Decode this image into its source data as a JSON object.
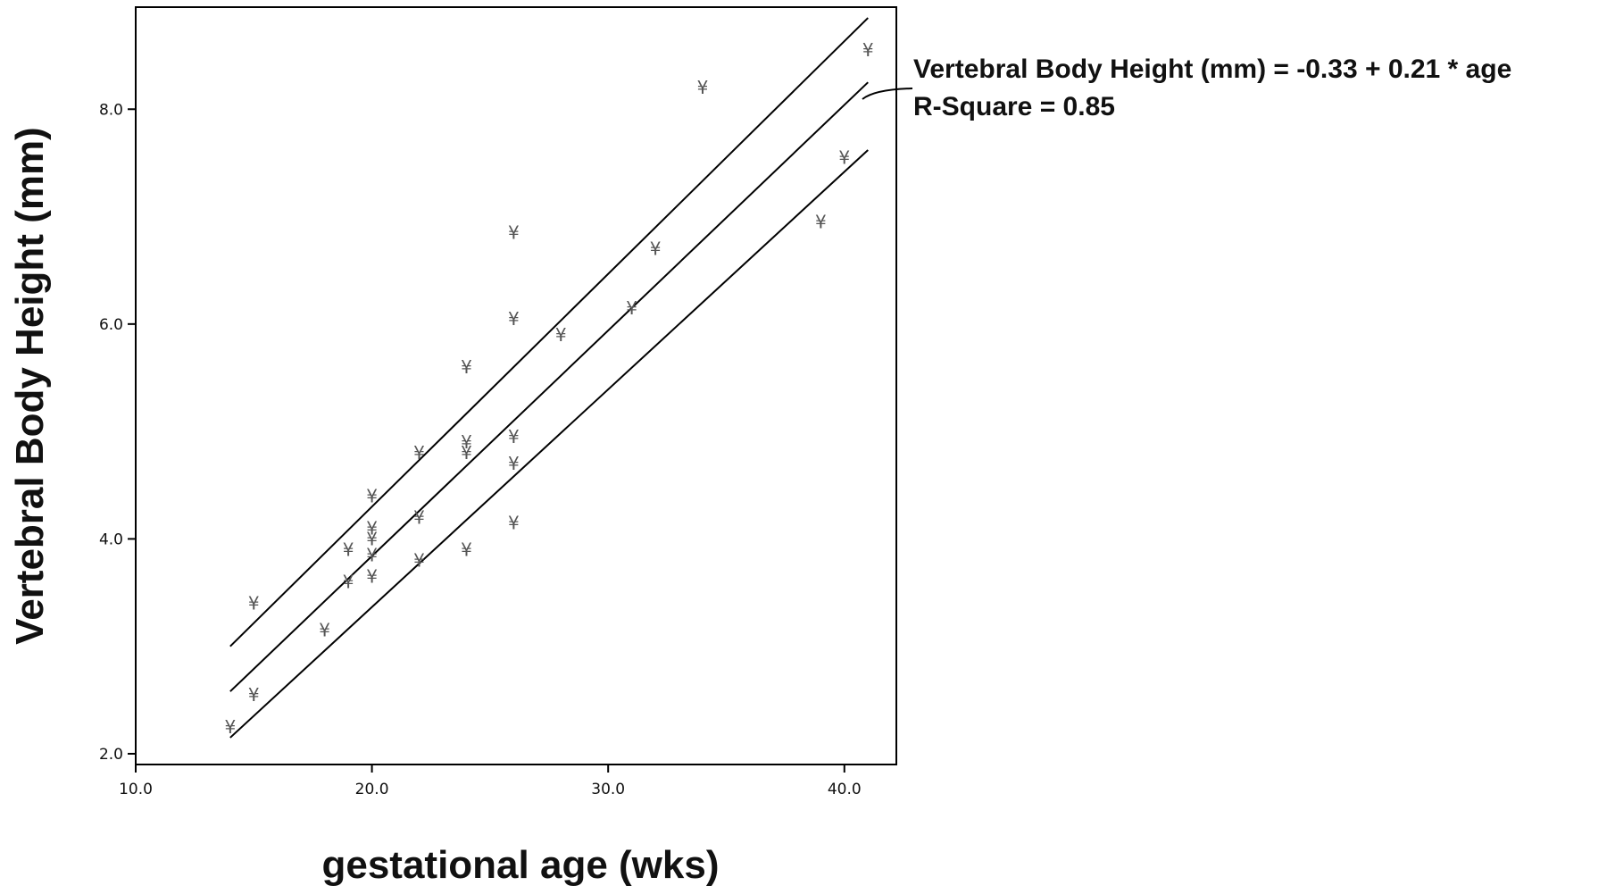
{
  "chart_data": {
    "type": "scatter",
    "xlabel": "gestational age (wks)",
    "ylabel": "Vertebral Body Height (mm)",
    "xlim": [
      10,
      42.2
    ],
    "ylim": [
      1.9,
      8.95
    ],
    "x_ticks": [
      10,
      20,
      30,
      40
    ],
    "x_tick_labels": [
      "10.0",
      "20.0",
      "30.0",
      "40.0"
    ],
    "y_ticks": [
      2,
      4,
      6,
      8
    ],
    "y_tick_labels": [
      "2.0",
      "4.0",
      "6.0",
      "8.0"
    ],
    "marker_symbol": "¥",
    "marker_color": "#555555",
    "grid": false,
    "points": [
      {
        "x": 14,
        "y": 2.25
      },
      {
        "x": 15,
        "y": 2.55
      },
      {
        "x": 15,
        "y": 3.4
      },
      {
        "x": 18,
        "y": 3.15
      },
      {
        "x": 19,
        "y": 3.6
      },
      {
        "x": 19,
        "y": 3.9
      },
      {
        "x": 20,
        "y": 3.65
      },
      {
        "x": 20,
        "y": 3.85
      },
      {
        "x": 20,
        "y": 4.0
      },
      {
        "x": 20,
        "y": 4.1
      },
      {
        "x": 20,
        "y": 4.4
      },
      {
        "x": 22,
        "y": 3.8
      },
      {
        "x": 22,
        "y": 4.2
      },
      {
        "x": 22,
        "y": 4.8
      },
      {
        "x": 24,
        "y": 3.9
      },
      {
        "x": 24,
        "y": 4.8
      },
      {
        "x": 24,
        "y": 4.9
      },
      {
        "x": 24,
        "y": 5.6
      },
      {
        "x": 26,
        "y": 4.15
      },
      {
        "x": 26,
        "y": 4.7
      },
      {
        "x": 26,
        "y": 4.95
      },
      {
        "x": 26,
        "y": 6.05
      },
      {
        "x": 26,
        "y": 6.85
      },
      {
        "x": 28,
        "y": 5.9
      },
      {
        "x": 31,
        "y": 6.15
      },
      {
        "x": 32,
        "y": 6.7
      },
      {
        "x": 34,
        "y": 8.2
      },
      {
        "x": 39,
        "y": 6.95
      },
      {
        "x": 40,
        "y": 7.55
      },
      {
        "x": 41,
        "y": 8.55
      }
    ],
    "fit": {
      "x_range": [
        14,
        41
      ],
      "fit_y": [
        2.58,
        8.25
      ],
      "upper_y": [
        3.0,
        8.85
      ],
      "lower_y": [
        2.15,
        7.62
      ]
    },
    "annotation": {
      "equation": "Vertebral Body Height (mm) = -0.33 + 0.21 * age",
      "r_square": "R-Square = 0.85"
    }
  }
}
